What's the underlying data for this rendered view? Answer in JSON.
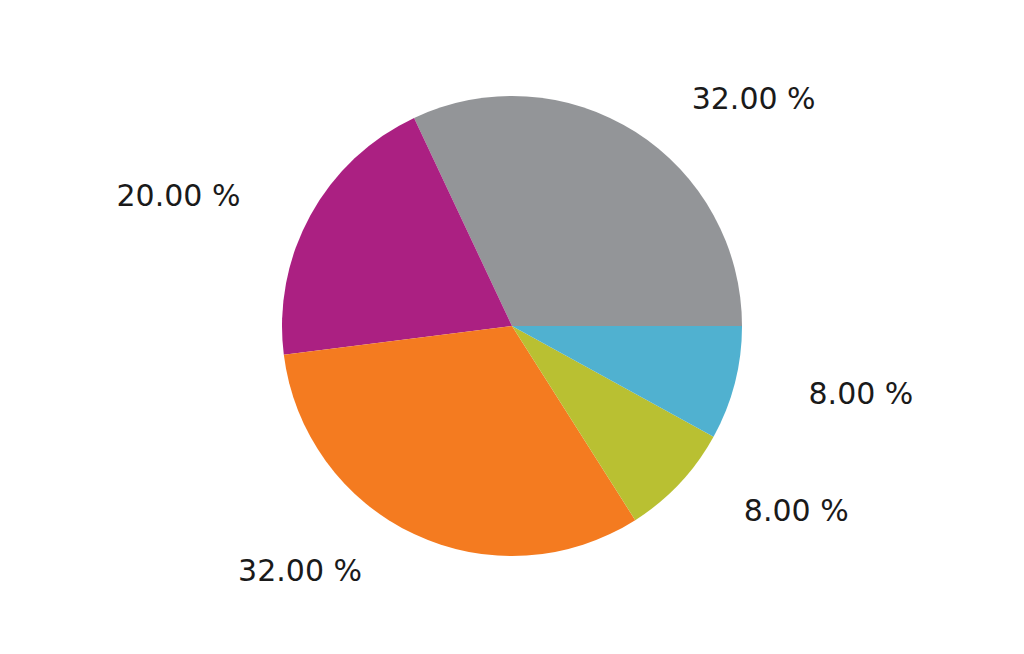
{
  "chart_data": {
    "type": "pie",
    "values": [
      32,
      20,
      32,
      8,
      8
    ],
    "value_labels": [
      "32.00 %",
      "20.00 %",
      "32.00 %",
      "8.00 %",
      "8.00 %"
    ],
    "colors": [
      "#939598",
      "#ab2082",
      "#f47b20",
      "#b9c032",
      "#50b1d0"
    ],
    "data_labels": true
  }
}
